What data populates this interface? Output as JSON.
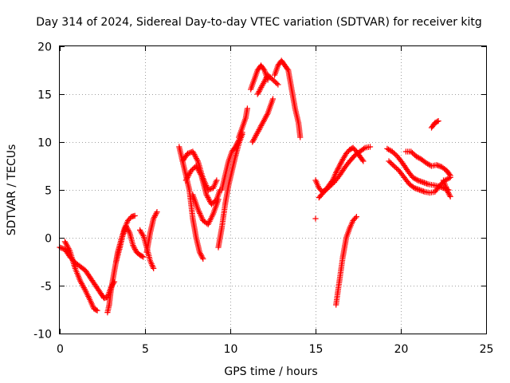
{
  "chart_data": {
    "type": "scatter",
    "title": "Day 314 of 2024, Sidereal Day-to-day VTEC variation (SDTVAR) for receiver kitg",
    "xlabel": "GPS time / hours",
    "ylabel": "SDTVAR / TECUs",
    "xlim": [
      0,
      25
    ],
    "ylim": [
      -10,
      20
    ],
    "xticks": [
      "0",
      "5",
      "10",
      "15",
      "20",
      "25"
    ],
    "yticks": [
      "-10",
      "-5",
      "0",
      "5",
      "10",
      "15",
      "20"
    ],
    "xtick_values": [
      0,
      5,
      10,
      15,
      20,
      25
    ],
    "ytick_values": [
      -10,
      -5,
      0,
      5,
      10,
      15,
      20
    ],
    "grid": true,
    "marker": "+",
    "color": "#ff0000",
    "series": [
      {
        "x": [
          0.0,
          0.3,
          0.6,
          0.9,
          1.2,
          1.5,
          1.8,
          2.1,
          2.4,
          2.6,
          2.8,
          3.0,
          3.2
        ],
        "values": [
          -1.0,
          -1.2,
          -2.0,
          -2.6,
          -3.0,
          -3.4,
          -4.2,
          -5.0,
          -5.8,
          -6.3,
          -6.2,
          -5.2,
          -4.6
        ]
      },
      {
        "x": [
          0.3,
          0.6,
          0.9,
          1.2,
          1.5,
          1.8,
          2.0,
          2.2
        ],
        "values": [
          -0.4,
          -1.4,
          -3.2,
          -4.5,
          -5.5,
          -6.6,
          -7.4,
          -7.6
        ]
      },
      {
        "x": [
          2.8,
          2.9,
          3.0,
          3.2,
          3.4,
          3.6,
          3.8,
          4.0,
          4.2,
          4.4
        ],
        "values": [
          -7.8,
          -7.0,
          -5.5,
          -3.5,
          -1.5,
          -0.2,
          1.0,
          1.8,
          2.2,
          2.3
        ]
      },
      {
        "x": [
          3.3,
          3.5,
          3.7,
          3.9,
          4.1,
          4.3,
          4.5,
          4.7,
          4.9
        ],
        "values": [
          -2.5,
          -1.2,
          0.3,
          1.2,
          0.5,
          -0.8,
          -1.5,
          -1.8,
          -2.0
        ]
      },
      {
        "x": [
          4.7,
          4.9,
          5.1,
          5.3,
          5.5
        ],
        "values": [
          0.8,
          0.2,
          -1.0,
          -2.4,
          -3.2
        ]
      },
      {
        "x": [
          5.1,
          5.3,
          5.5,
          5.7
        ],
        "values": [
          -1.5,
          0.5,
          2.0,
          2.7
        ]
      },
      {
        "x": [
          7.0,
          7.2,
          7.4,
          7.6,
          7.8,
          8.0,
          8.2,
          8.4
        ],
        "values": [
          9.5,
          8.0,
          6.5,
          5.0,
          2.0,
          0.0,
          -1.5,
          -2.2
        ]
      },
      {
        "x": [
          7.2,
          7.5,
          7.8,
          8.1,
          8.4,
          8.7,
          9.0,
          9.2
        ],
        "values": [
          8.0,
          8.8,
          9.0,
          8.0,
          6.2,
          5.0,
          5.2,
          6.0
        ]
      },
      {
        "x": [
          7.4,
          7.7,
          8.0,
          8.3,
          8.6,
          8.9,
          9.2,
          9.4
        ],
        "values": [
          6.0,
          7.0,
          7.5,
          6.5,
          4.5,
          3.5,
          4.0,
          5.0
        ]
      },
      {
        "x": [
          7.8,
          8.1,
          8.4,
          8.7,
          9.0,
          9.3
        ],
        "values": [
          4.5,
          3.0,
          1.8,
          1.4,
          2.5,
          4.0
        ]
      },
      {
        "x": [
          9.3,
          9.5,
          9.7,
          9.9,
          10.1,
          10.3,
          10.5,
          10.7
        ],
        "values": [
          -1.0,
          1.0,
          3.5,
          5.5,
          7.0,
          8.5,
          9.8,
          10.8
        ]
      },
      {
        "x": [
          9.5,
          9.7,
          9.9,
          10.1,
          10.3,
          10.5,
          10.7
        ],
        "values": [
          5.0,
          6.5,
          8.0,
          9.0,
          9.5,
          10.2,
          11.0
        ]
      },
      {
        "x": [
          10.5,
          10.7,
          10.9,
          11.0
        ],
        "values": [
          10.5,
          11.5,
          12.5,
          13.5
        ]
      },
      {
        "x": [
          11.2,
          11.4,
          11.6,
          11.8,
          12.0,
          12.2
        ],
        "values": [
          15.5,
          16.5,
          17.5,
          18.0,
          17.5,
          16.5
        ]
      },
      {
        "x": [
          11.3,
          11.6,
          11.9,
          12.2,
          12.5
        ],
        "values": [
          10.0,
          11.0,
          12.0,
          13.0,
          14.5
        ]
      },
      {
        "x": [
          11.6,
          11.9,
          12.2,
          12.5,
          12.8
        ],
        "values": [
          15.0,
          16.0,
          17.0,
          16.5,
          16.0
        ]
      },
      {
        "x": [
          12.6,
          12.8,
          13.0,
          13.2,
          13.4,
          13.6,
          13.8,
          14.0,
          14.1
        ],
        "values": [
          17.0,
          18.0,
          18.5,
          18.0,
          17.5,
          15.5,
          13.5,
          12.0,
          10.5
        ]
      },
      {
        "x": [
          15.0,
          15.2,
          15.4,
          15.6,
          15.8,
          16.0,
          16.2,
          16.4,
          16.6,
          16.8,
          17.0,
          17.2,
          17.4,
          17.6,
          17.8
        ],
        "values": [
          6.0,
          5.2,
          4.8,
          5.0,
          5.5,
          6.0,
          6.8,
          7.5,
          8.2,
          8.8,
          9.2,
          9.4,
          9.0,
          8.5,
          8.0
        ]
      },
      {
        "x": [
          15.2,
          15.5,
          15.8,
          16.1,
          16.4,
          16.7,
          17.0,
          17.3,
          17.6,
          17.9,
          18.2
        ],
        "values": [
          4.2,
          4.8,
          5.3,
          5.8,
          6.5,
          7.3,
          8.0,
          8.6,
          9.0,
          9.4,
          9.5
        ]
      },
      {
        "x": [
          15.0
        ],
        "values": [
          2.0
        ]
      },
      {
        "x": [
          16.2,
          16.4,
          16.6,
          16.8,
          17.0,
          17.2,
          17.4
        ],
        "values": [
          -7.0,
          -4.5,
          -2.0,
          0.0,
          1.0,
          1.8,
          2.2
        ]
      },
      {
        "x": [
          19.2,
          19.5,
          19.8,
          20.1,
          20.4,
          20.7,
          21.0,
          21.3,
          21.6,
          21.9,
          22.2,
          22.5,
          22.8
        ],
        "values": [
          9.3,
          9.0,
          8.5,
          7.8,
          7.0,
          6.3,
          6.0,
          5.8,
          5.6,
          5.5,
          5.4,
          5.2,
          5.0
        ]
      },
      {
        "x": [
          19.3,
          19.6,
          19.9,
          20.2,
          20.5,
          20.8,
          21.1,
          21.4,
          21.7,
          22.0,
          22.3,
          22.6,
          22.9
        ],
        "values": [
          8.0,
          7.5,
          7.0,
          6.3,
          5.6,
          5.2,
          5.0,
          4.8,
          4.7,
          4.8,
          5.5,
          6.0,
          6.3
        ]
      },
      {
        "x": [
          20.3,
          20.6,
          20.9,
          21.2,
          21.5,
          21.8,
          22.1,
          22.4,
          22.7,
          22.9
        ],
        "values": [
          9.0,
          9.0,
          8.5,
          8.2,
          7.8,
          7.5,
          7.6,
          7.4,
          7.0,
          6.5
        ]
      },
      {
        "x": [
          21.8,
          22.0,
          22.2
        ],
        "values": [
          11.5,
          12.0,
          12.2
        ]
      },
      {
        "x": [
          22.5,
          22.7,
          22.9
        ],
        "values": [
          6.0,
          5.0,
          4.3
        ]
      }
    ]
  }
}
